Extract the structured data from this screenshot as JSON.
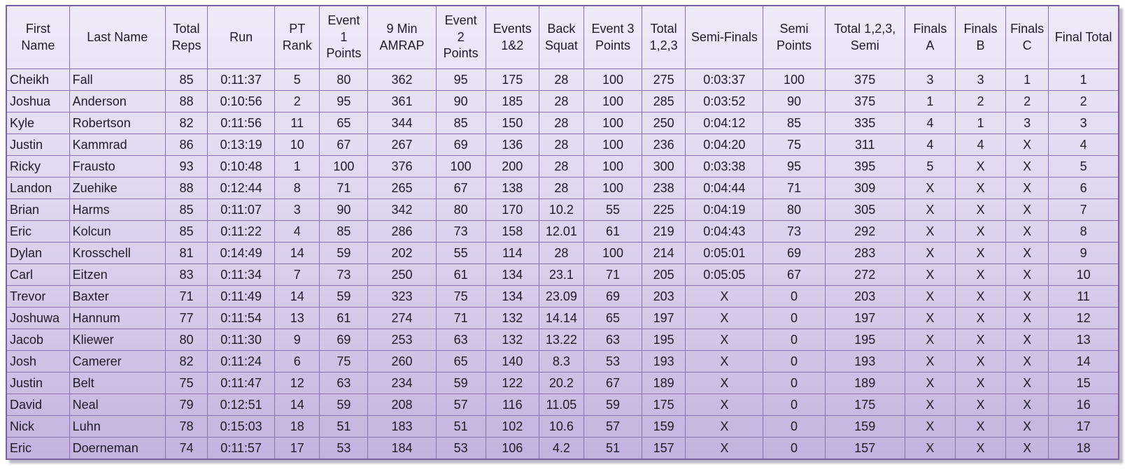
{
  "colors": {
    "grid_line": "#8C72AE",
    "outer_border": "#7B61A2",
    "background_top": "#EFEAF8",
    "background_bottom": "#C3B2DE",
    "text": "#1F1928"
  },
  "table": {
    "columns": [
      "First Name",
      "Last Name",
      "Total Reps",
      "Run",
      "PT Rank",
      "Event 1 Points",
      "9 Min AMRAP",
      "Event 2 Points",
      "Events 1&2",
      "Back Squat",
      "Event 3 Points",
      "Total 1,2,3",
      "Semi-Finals",
      "Semi Points",
      "Total 1,2,3, Semi",
      "Finals A",
      "Finals B",
      "Finals C",
      "Final Total"
    ],
    "rows": [
      [
        "Cheikh",
        "Fall",
        "85",
        "0:11:37",
        "5",
        "80",
        "362",
        "95",
        "175",
        "28",
        "100",
        "275",
        "0:03:37",
        "100",
        "375",
        "3",
        "3",
        "1",
        "1"
      ],
      [
        "Joshua",
        "Anderson",
        "88",
        "0:10:56",
        "2",
        "95",
        "361",
        "90",
        "185",
        "28",
        "100",
        "285",
        "0:03:52",
        "90",
        "375",
        "1",
        "2",
        "2",
        "2"
      ],
      [
        "Kyle",
        "Robertson",
        "82",
        "0:11:56",
        "11",
        "65",
        "344",
        "85",
        "150",
        "28",
        "100",
        "250",
        "0:04:12",
        "85",
        "335",
        "4",
        "1",
        "3",
        "3"
      ],
      [
        "Justin",
        "Kammrad",
        "86",
        "0:13:19",
        "10",
        "67",
        "267",
        "69",
        "136",
        "28",
        "100",
        "236",
        "0:04:20",
        "75",
        "311",
        "4",
        "4",
        "X",
        "4"
      ],
      [
        "Ricky",
        "Frausto",
        "93",
        "0:10:48",
        "1",
        "100",
        "376",
        "100",
        "200",
        "28",
        "100",
        "300",
        "0:03:38",
        "95",
        "395",
        "5",
        "X",
        "X",
        "5"
      ],
      [
        "Landon",
        "Zuehike",
        "88",
        "0:12:44",
        "8",
        "71",
        "265",
        "67",
        "138",
        "28",
        "100",
        "238",
        "0:04:44",
        "71",
        "309",
        "X",
        "X",
        "X",
        "6"
      ],
      [
        "Brian",
        "Harms",
        "85",
        "0:11:07",
        "3",
        "90",
        "342",
        "80",
        "170",
        "10.2",
        "55",
        "225",
        "0:04:19",
        "80",
        "305",
        "X",
        "X",
        "X",
        "7"
      ],
      [
        "Eric",
        "Kolcun",
        "85",
        "0:11:22",
        "4",
        "85",
        "286",
        "73",
        "158",
        "12.01",
        "61",
        "219",
        "0:04:43",
        "73",
        "292",
        "X",
        "X",
        "X",
        "8"
      ],
      [
        "Dylan",
        "Krosschell",
        "81",
        "0:14:49",
        "14",
        "59",
        "202",
        "55",
        "114",
        "28",
        "100",
        "214",
        "0:05:01",
        "69",
        "283",
        "X",
        "X",
        "X",
        "9"
      ],
      [
        "Carl",
        "Eitzen",
        "83",
        "0:11:34",
        "7",
        "73",
        "250",
        "61",
        "134",
        "23.1",
        "71",
        "205",
        "0:05:05",
        "67",
        "272",
        "X",
        "X",
        "X",
        "10"
      ],
      [
        "Trevor",
        "Baxter",
        "71",
        "0:11:49",
        "14",
        "59",
        "323",
        "75",
        "134",
        "23.09",
        "69",
        "203",
        "X",
        "0",
        "203",
        "X",
        "X",
        "X",
        "11"
      ],
      [
        "Joshuwa",
        "Hannum",
        "77",
        "0:11:54",
        "13",
        "61",
        "274",
        "71",
        "132",
        "14.14",
        "65",
        "197",
        "X",
        "0",
        "197",
        "X",
        "X",
        "X",
        "12"
      ],
      [
        "Jacob",
        "Kliewer",
        "80",
        "0:11:30",
        "9",
        "69",
        "253",
        "63",
        "132",
        "13.22",
        "63",
        "195",
        "X",
        "0",
        "195",
        "X",
        "X",
        "X",
        "13"
      ],
      [
        "Josh",
        "Camerer",
        "82",
        "0:11:24",
        "6",
        "75",
        "260",
        "65",
        "140",
        "8.3",
        "53",
        "193",
        "X",
        "0",
        "193",
        "X",
        "X",
        "X",
        "14"
      ],
      [
        "Justin",
        "Belt",
        "75",
        "0:11:47",
        "12",
        "63",
        "234",
        "59",
        "122",
        "20.2",
        "67",
        "189",
        "X",
        "0",
        "189",
        "X",
        "X",
        "X",
        "15"
      ],
      [
        "David",
        "Neal",
        "79",
        "0:12:51",
        "14",
        "59",
        "208",
        "57",
        "116",
        "11.05",
        "59",
        "175",
        "X",
        "0",
        "175",
        "X",
        "X",
        "X",
        "16"
      ],
      [
        "Nick",
        "Luhn",
        "78",
        "0:15:03",
        "18",
        "51",
        "183",
        "51",
        "102",
        "10.6",
        "57",
        "159",
        "X",
        "0",
        "159",
        "X",
        "X",
        "X",
        "17"
      ],
      [
        "Eric",
        "Doerneman",
        "74",
        "0:11:57",
        "17",
        "53",
        "184",
        "53",
        "106",
        "4.2",
        "51",
        "157",
        "X",
        "0",
        "157",
        "X",
        "X",
        "X",
        "18"
      ]
    ]
  }
}
